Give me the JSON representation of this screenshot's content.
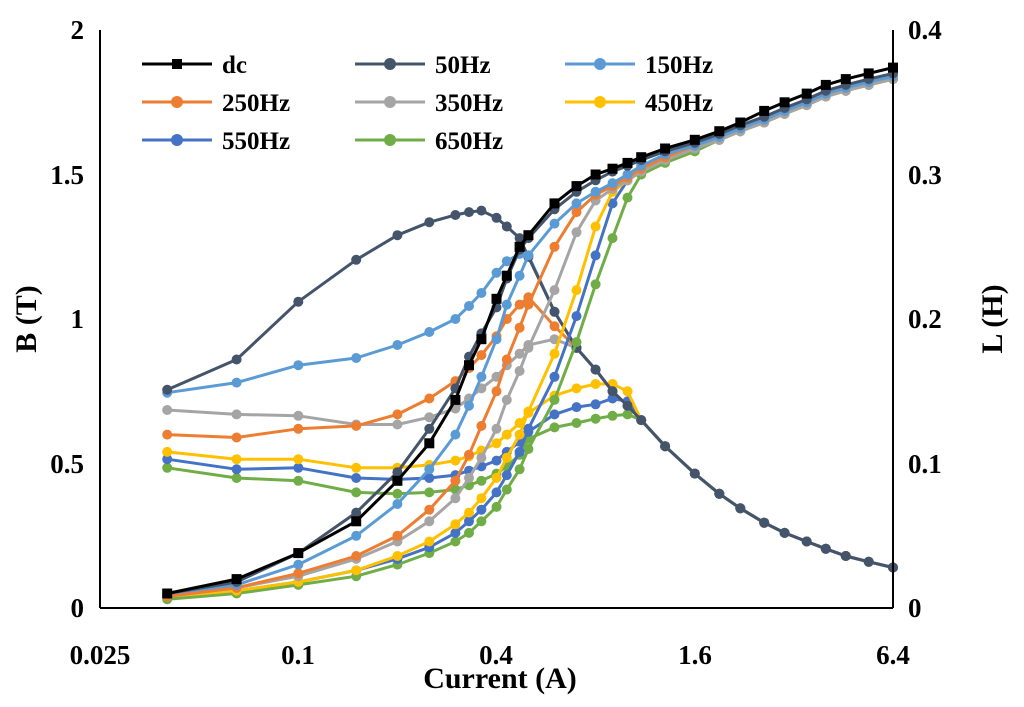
{
  "chart_data": {
    "type": "line",
    "title": "",
    "xlabel": "Current (A)",
    "ylabel_left": "B (T)",
    "ylabel_right": "L (H)",
    "x_scale": "log2",
    "xlim": [
      0.025,
      6.4
    ],
    "ylim_left": [
      0,
      2
    ],
    "ylim_right": [
      0,
      0.4
    ],
    "x_ticks": [
      "0.025",
      "0.1",
      "0.4",
      "1.6",
      "6.4"
    ],
    "y_ticks_left": [
      "0",
      "0.5",
      "1",
      "1.5",
      "2"
    ],
    "y_ticks_right": [
      "0",
      "0.1",
      "0.2",
      "0.3",
      "0.4"
    ],
    "grid": false,
    "legend_position": "top-left",
    "legend": [
      "dc",
      "50Hz",
      "150Hz",
      "250Hz",
      "350Hz",
      "450Hz",
      "550Hz",
      "650Hz"
    ],
    "series": [
      {
        "name": "dc",
        "color": "#000000",
        "marker": "square",
        "x": [
          0.04,
          0.065,
          0.1,
          0.15,
          0.2,
          0.25,
          0.3,
          0.33,
          0.36,
          0.4,
          0.43,
          0.47,
          0.5,
          0.6,
          0.7,
          0.8,
          0.9,
          1.0,
          1.1,
          1.3,
          1.6,
          1.9,
          2.2,
          2.6,
          3.0,
          3.5,
          4.0,
          4.6,
          5.4,
          6.4
        ],
        "B": [
          0.05,
          0.1,
          0.19,
          0.3,
          0.44,
          0.57,
          0.72,
          0.84,
          0.93,
          1.07,
          1.15,
          1.25,
          1.29,
          1.4,
          1.46,
          1.5,
          1.52,
          1.54,
          1.56,
          1.59,
          1.62,
          1.65,
          1.68,
          1.72,
          1.75,
          1.78,
          1.81,
          1.83,
          1.85,
          1.87
        ]
      },
      {
        "name": "50Hz",
        "color": "#44546A",
        "marker": "circle",
        "x": [
          0.04,
          0.065,
          0.1,
          0.15,
          0.2,
          0.25,
          0.3,
          0.33,
          0.36,
          0.4,
          0.43,
          0.47,
          0.5,
          0.6,
          0.7,
          0.8,
          0.9,
          1.0,
          1.1,
          1.3,
          1.6,
          1.9,
          2.2,
          2.6,
          3.0,
          3.5,
          4.0,
          4.6,
          5.4,
          6.4
        ],
        "B": [
          0.05,
          0.09,
          0.19,
          0.33,
          0.47,
          0.62,
          0.76,
          0.87,
          0.95,
          1.04,
          1.14,
          1.24,
          1.28,
          1.38,
          1.44,
          1.48,
          1.51,
          1.53,
          1.55,
          1.58,
          1.61,
          1.64,
          1.67,
          1.7,
          1.73,
          1.76,
          1.79,
          1.81,
          1.83,
          1.85
        ],
        "L": [
          0.151,
          0.172,
          0.212,
          0.241,
          0.258,
          0.267,
          0.272,
          0.274,
          0.275,
          0.27,
          0.264,
          0.256,
          0.243,
          0.205,
          0.18,
          0.165,
          0.15,
          0.14,
          0.13,
          0.112,
          0.093,
          0.079,
          0.069,
          0.059,
          0.052,
          0.046,
          0.041,
          0.036,
          0.032,
          0.028
        ]
      },
      {
        "name": "150Hz",
        "color": "#5B9BD5",
        "marker": "circle",
        "x": [
          0.04,
          0.065,
          0.1,
          0.15,
          0.2,
          0.25,
          0.3,
          0.33,
          0.36,
          0.4,
          0.43,
          0.47,
          0.5,
          0.6,
          0.7,
          0.8,
          0.9,
          1.0,
          1.1,
          1.3,
          1.6,
          1.9,
          2.2,
          2.6,
          3.0,
          3.5,
          4.0,
          4.6,
          5.4,
          6.4
        ],
        "B": [
          0.05,
          0.08,
          0.15,
          0.25,
          0.36,
          0.48,
          0.6,
          0.7,
          0.8,
          0.93,
          1.05,
          1.15,
          1.22,
          1.33,
          1.4,
          1.44,
          1.47,
          1.5,
          1.53,
          1.57,
          1.6,
          1.63,
          1.66,
          1.69,
          1.72,
          1.75,
          1.78,
          1.8,
          1.82,
          1.84
        ],
        "L": [
          0.149,
          0.156,
          0.168,
          0.173,
          0.182,
          0.191,
          0.2,
          0.209,
          0.218,
          0.232,
          0.24,
          0.245,
          0.244,
          0.205,
          0.18,
          0.165,
          0.15,
          0.14,
          0.13,
          0.112,
          0.093,
          0.079,
          0.069,
          0.059,
          0.052,
          0.046,
          0.041,
          0.036,
          0.032,
          0.028
        ]
      },
      {
        "name": "250Hz",
        "color": "#ED7D31",
        "marker": "circle",
        "x": [
          0.04,
          0.065,
          0.1,
          0.15,
          0.2,
          0.25,
          0.3,
          0.33,
          0.36,
          0.4,
          0.43,
          0.47,
          0.5,
          0.6,
          0.7,
          0.8,
          0.9,
          1.0,
          1.1,
          1.3,
          1.6,
          1.9,
          2.2,
          2.6,
          3.0,
          3.5,
          4.0,
          4.6,
          5.4,
          6.4
        ],
        "B": [
          0.04,
          0.07,
          0.12,
          0.18,
          0.25,
          0.34,
          0.44,
          0.53,
          0.63,
          0.75,
          0.86,
          0.97,
          1.05,
          1.25,
          1.37,
          1.43,
          1.46,
          1.49,
          1.52,
          1.56,
          1.6,
          1.63,
          1.66,
          1.69,
          1.72,
          1.75,
          1.78,
          1.8,
          1.82,
          1.84
        ],
        "L": [
          0.12,
          0.118,
          0.124,
          0.126,
          0.134,
          0.145,
          0.157,
          0.166,
          0.175,
          0.188,
          0.2,
          0.21,
          0.215,
          0.195,
          0.18,
          0.165,
          0.15,
          0.14,
          0.13,
          0.112,
          0.093,
          0.079,
          0.069,
          0.059,
          0.052,
          0.046,
          0.041,
          0.036,
          0.032,
          0.028
        ]
      },
      {
        "name": "350Hz",
        "color": "#A5A5A5",
        "marker": "circle",
        "x": [
          0.04,
          0.065,
          0.1,
          0.15,
          0.2,
          0.25,
          0.3,
          0.33,
          0.36,
          0.4,
          0.43,
          0.47,
          0.5,
          0.6,
          0.7,
          0.8,
          0.9,
          1.0,
          1.1,
          1.3,
          1.6,
          1.9,
          2.2,
          2.6,
          3.0,
          3.5,
          4.0,
          4.6,
          5.4,
          6.4
        ],
        "B": [
          0.04,
          0.07,
          0.11,
          0.17,
          0.23,
          0.3,
          0.38,
          0.45,
          0.52,
          0.62,
          0.72,
          0.82,
          0.9,
          1.1,
          1.3,
          1.41,
          1.45,
          1.48,
          1.51,
          1.55,
          1.59,
          1.62,
          1.65,
          1.68,
          1.71,
          1.74,
          1.77,
          1.79,
          1.81,
          1.83
        ],
        "L": [
          0.137,
          0.134,
          0.133,
          0.127,
          0.127,
          0.132,
          0.138,
          0.145,
          0.152,
          0.16,
          0.168,
          0.176,
          0.182,
          0.186,
          0.18,
          0.165,
          0.15,
          0.14,
          0.13,
          0.112,
          0.093,
          0.079,
          0.069,
          0.059,
          0.052,
          0.046,
          0.041,
          0.036,
          0.032,
          0.028
        ]
      },
      {
        "name": "450Hz",
        "color": "#FFC000",
        "marker": "circle",
        "x": [
          0.04,
          0.065,
          0.1,
          0.15,
          0.2,
          0.25,
          0.3,
          0.33,
          0.36,
          0.4,
          0.43,
          0.47,
          0.5,
          0.6,
          0.7,
          0.8,
          0.9,
          1.0,
          1.1,
          1.3,
          1.6,
          1.9,
          2.2,
          2.6,
          3.0,
          3.5,
          4.0,
          4.6,
          5.4,
          6.4
        ],
        "B": [
          0.04,
          0.06,
          0.09,
          0.13,
          0.18,
          0.23,
          0.29,
          0.33,
          0.38,
          0.45,
          0.52,
          0.6,
          0.68,
          0.88,
          1.1,
          1.32,
          1.44,
          1.48,
          1.51,
          1.55,
          1.59,
          1.62,
          1.65,
          1.68,
          1.71,
          1.74,
          1.77,
          1.79,
          1.81,
          1.83
        ],
        "L": [
          0.108,
          0.103,
          0.103,
          0.097,
          0.097,
          0.099,
          0.102,
          0.105,
          0.109,
          0.114,
          0.12,
          0.128,
          0.135,
          0.147,
          0.152,
          0.155,
          0.155,
          0.15,
          0.13,
          0.112,
          0.093,
          0.079,
          0.069,
          0.059,
          0.052,
          0.046,
          0.041,
          0.036,
          0.032,
          0.028
        ]
      },
      {
        "name": "550Hz",
        "color": "#4472C4",
        "marker": "circle",
        "x": [
          0.04,
          0.065,
          0.1,
          0.15,
          0.2,
          0.25,
          0.3,
          0.33,
          0.36,
          0.4,
          0.43,
          0.47,
          0.5,
          0.6,
          0.7,
          0.8,
          0.9,
          1.0,
          1.1,
          1.3,
          1.6,
          1.9,
          2.2,
          2.6,
          3.0,
          3.5,
          4.0,
          4.6,
          5.4,
          6.4
        ],
        "B": [
          0.04,
          0.06,
          0.09,
          0.13,
          0.17,
          0.21,
          0.26,
          0.3,
          0.34,
          0.4,
          0.46,
          0.54,
          0.62,
          0.8,
          1.01,
          1.22,
          1.4,
          1.48,
          1.51,
          1.55,
          1.59,
          1.62,
          1.65,
          1.68,
          1.71,
          1.74,
          1.77,
          1.79,
          1.81,
          1.83
        ],
        "L": [
          0.103,
          0.096,
          0.097,
          0.09,
          0.089,
          0.09,
          0.092,
          0.095,
          0.098,
          0.102,
          0.108,
          0.115,
          0.122,
          0.134,
          0.139,
          0.141,
          0.145,
          0.143,
          0.13,
          0.112,
          0.093,
          0.079,
          0.069,
          0.059,
          0.052,
          0.046,
          0.041,
          0.036,
          0.032,
          0.028
        ]
      },
      {
        "name": "650Hz",
        "color": "#70AD47",
        "marker": "circle",
        "x": [
          0.04,
          0.065,
          0.1,
          0.15,
          0.2,
          0.25,
          0.3,
          0.33,
          0.36,
          0.4,
          0.43,
          0.47,
          0.5,
          0.6,
          0.7,
          0.8,
          0.9,
          1.0,
          1.1,
          1.3,
          1.6,
          1.9,
          2.2,
          2.6,
          3.0,
          3.5,
          4.0,
          4.6,
          5.4,
          6.4
        ],
        "B": [
          0.03,
          0.05,
          0.08,
          0.11,
          0.15,
          0.19,
          0.23,
          0.26,
          0.3,
          0.35,
          0.41,
          0.48,
          0.55,
          0.72,
          0.92,
          1.12,
          1.28,
          1.42,
          1.5,
          1.54,
          1.58,
          1.62,
          1.65,
          1.68,
          1.71,
          1.74,
          1.77,
          1.79,
          1.81,
          1.83
        ],
        "L": [
          0.097,
          0.09,
          0.088,
          0.08,
          0.079,
          0.08,
          0.082,
          0.085,
          0.088,
          0.093,
          0.098,
          0.106,
          0.117,
          0.125,
          0.128,
          0.131,
          0.133,
          0.134,
          0.13,
          0.112,
          0.093,
          0.079,
          0.069,
          0.059,
          0.052,
          0.046,
          0.041,
          0.036,
          0.032,
          0.028
        ]
      }
    ]
  }
}
